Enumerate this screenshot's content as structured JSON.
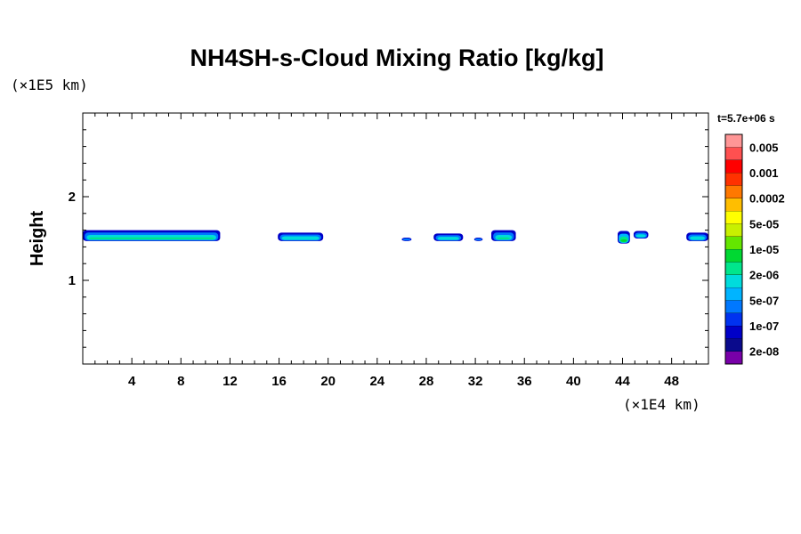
{
  "chart_data": {
    "type": "heatmap",
    "title": "NH4SH-s-Cloud Mixing Ratio [kg/kg]",
    "xlabel": "",
    "ylabel": "Height",
    "x_unit": "(×1E4 km)",
    "y_unit": "(×1E5 km)",
    "time_label": "t=5.7e+06 s",
    "xlim": [
      0,
      51
    ],
    "ylim": [
      0,
      3
    ],
    "xticks": [
      "4",
      "8",
      "12",
      "16",
      "20",
      "24",
      "28",
      "32",
      "36",
      "40",
      "44",
      "48"
    ],
    "yticks": [
      "1",
      "2"
    ],
    "colorbar": {
      "labels": [
        "2e-08",
        "1e-07",
        "5e-07",
        "2e-06",
        "1e-05",
        "5e-05",
        "0.0002",
        "0.001",
        "0.005"
      ],
      "colors": [
        "#7800a8",
        "#0a0a8c",
        "#0000c8",
        "#0032f0",
        "#0078ff",
        "#00b4ff",
        "#00dcdc",
        "#00e68c",
        "#00d832",
        "#64e600",
        "#c8f000",
        "#ffff00",
        "#ffbe00",
        "#ff7800",
        "#ff3200",
        "#ff0000",
        "#ff5050",
        "#ff9696"
      ]
    },
    "cloud_patches": [
      {
        "x_range": [
          0.0,
          11.2
        ],
        "y_range": [
          1.47,
          1.6
        ],
        "max_level": "2e-06"
      },
      {
        "x_range": [
          15.9,
          19.6
        ],
        "y_range": [
          1.47,
          1.57
        ],
        "max_level": "5e-07"
      },
      {
        "x_range": [
          26.0,
          26.8
        ],
        "y_range": [
          1.47,
          1.51
        ],
        "max_level": "5e-07"
      },
      {
        "x_range": [
          28.6,
          31.0
        ],
        "y_range": [
          1.47,
          1.56
        ],
        "max_level": "5e-07"
      },
      {
        "x_range": [
          31.9,
          32.6
        ],
        "y_range": [
          1.47,
          1.51
        ],
        "max_level": "5e-07"
      },
      {
        "x_range": [
          33.3,
          35.3
        ],
        "y_range": [
          1.47,
          1.6
        ],
        "max_level": "2e-06"
      },
      {
        "x_range": [
          43.6,
          44.6
        ],
        "y_range": [
          1.44,
          1.59
        ],
        "max_level": "1e-05"
      },
      {
        "x_range": [
          44.9,
          46.1
        ],
        "y_range": [
          1.5,
          1.59
        ],
        "max_level": "5e-07"
      },
      {
        "x_range": [
          49.2,
          51.0
        ],
        "y_range": [
          1.47,
          1.57
        ],
        "max_level": "5e-07"
      }
    ]
  }
}
